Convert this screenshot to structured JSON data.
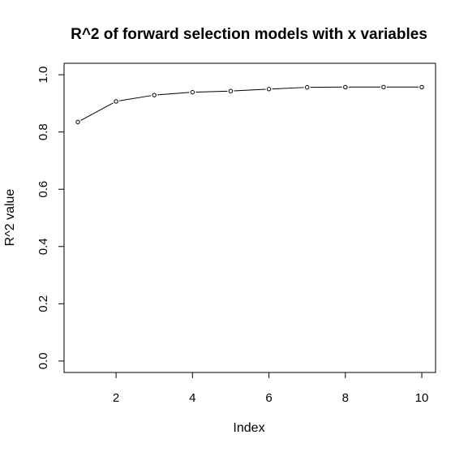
{
  "chart_data": {
    "type": "line",
    "title": "R^2 of forward selection models with x variables",
    "xlabel": "Index",
    "ylabel": "R^2 value",
    "x": [
      1,
      2,
      3,
      4,
      5,
      6,
      7,
      8,
      9,
      10
    ],
    "y": [
      0.835,
      0.907,
      0.929,
      0.939,
      0.943,
      0.95,
      0.956,
      0.957,
      0.957,
      0.957
    ],
    "xlim": [
      0.64,
      10.36
    ],
    "ylim": [
      -0.04,
      1.04
    ],
    "xticks": [
      2,
      4,
      6,
      8,
      10
    ],
    "yticks": [
      0.0,
      0.2,
      0.4,
      0.6,
      0.8,
      1.0
    ],
    "xtick_labels": [
      "2",
      "4",
      "6",
      "8",
      "10"
    ],
    "ytick_labels": [
      "0.0",
      "0.2",
      "0.4",
      "0.6",
      "0.8",
      "1.0"
    ],
    "markers": "open-circle",
    "grid": false,
    "legend": "none",
    "colors": {
      "line": "#000000",
      "marker": "#000000",
      "background": "#ffffff"
    }
  }
}
